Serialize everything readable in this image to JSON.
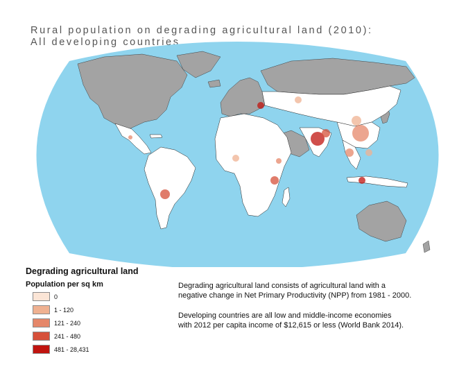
{
  "title": {
    "line1": "Rural population on degrading agricultural land (2010):",
    "line2": "All developing countries"
  },
  "legend": {
    "title": "Degrading agricultural land",
    "subtitle": "Population per sq km",
    "items": [
      {
        "label": "0",
        "color": "#fbe5d6"
      },
      {
        "label": "1 - 120",
        "color": "#efb191"
      },
      {
        "label": "121 - 240",
        "color": "#e5876a"
      },
      {
        "label": "241 - 480",
        "color": "#d6503a"
      },
      {
        "label": "481 - 28,431",
        "color": "#c0140f"
      }
    ]
  },
  "notes": {
    "definition_line1": "Degrading agricultural land consists of agricultural land with a",
    "definition_line2": "negative change in Net Primary Productivity (NPP) from 1981 - 2000.",
    "developing_line1": "Developing countries are all low and middle-income economies",
    "developing_line2": "with 2012 per capita income of $12,615 or less (World Bank 2014)."
  },
  "map_colors": {
    "ocean": "#8fd4ee",
    "developed_countries": "#a3a3a3",
    "developing_countries": "#ffffff",
    "borders": "#222222"
  }
}
